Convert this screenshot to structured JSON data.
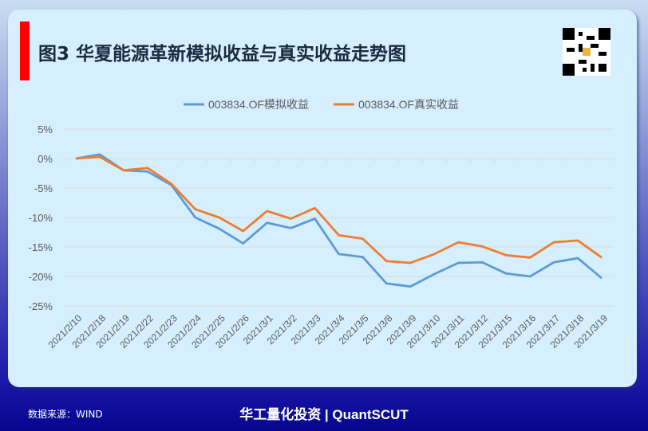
{
  "header": {
    "title": "图3 华夏能源革新模拟收益与真实收益走势图"
  },
  "footer": {
    "source": "数据来源：WIND",
    "brand": "华工量化投资 | QuantSCUT"
  },
  "chart_data": {
    "type": "line",
    "title": "",
    "xlabel": "",
    "ylabel": "",
    "ylim": [
      -25,
      5
    ],
    "yticks": [
      5,
      0,
      -5,
      -10,
      -15,
      -20,
      -25
    ],
    "ytick_labels": [
      "5%",
      "0%",
      "-5%",
      "-10%",
      "-15%",
      "-20%",
      "-25%"
    ],
    "grid": true,
    "legend": "top",
    "categories": [
      "2021/2/10",
      "2021/2/18",
      "2021/2/19",
      "2021/2/22",
      "2021/2/23",
      "2021/2/24",
      "2021/2/25",
      "2021/2/26",
      "2021/3/1",
      "2021/3/2",
      "2021/3/3",
      "2021/3/4",
      "2021/3/5",
      "2021/3/8",
      "2021/3/9",
      "2021/3/10",
      "2021/3/11",
      "2021/3/12",
      "2021/3/15",
      "2021/3/16",
      "2021/3/17",
      "2021/3/18",
      "2021/3/19"
    ],
    "series": [
      {
        "name": "003834.OF模拟收益",
        "color": "#5b9bd5",
        "values": [
          0,
          0.7,
          -2.0,
          -2.2,
          -4.5,
          -10.0,
          -11.9,
          -14.4,
          -10.9,
          -11.8,
          -10.2,
          -16.2,
          -16.7,
          -21.2,
          -21.7,
          -19.6,
          -17.7,
          -17.6,
          -19.5,
          -20.0,
          -17.6,
          -16.9,
          -20.3
        ]
      },
      {
        "name": "003834.OF真实收益",
        "color": "#ed7d31",
        "values": [
          0,
          0.3,
          -2.0,
          -1.6,
          -4.3,
          -8.6,
          -10.0,
          -12.3,
          -8.9,
          -10.2,
          -8.4,
          -13.0,
          -13.6,
          -17.4,
          -17.7,
          -16.2,
          -14.2,
          -14.9,
          -16.4,
          -16.8,
          -14.2,
          -13.9,
          -16.8
        ]
      }
    ]
  }
}
